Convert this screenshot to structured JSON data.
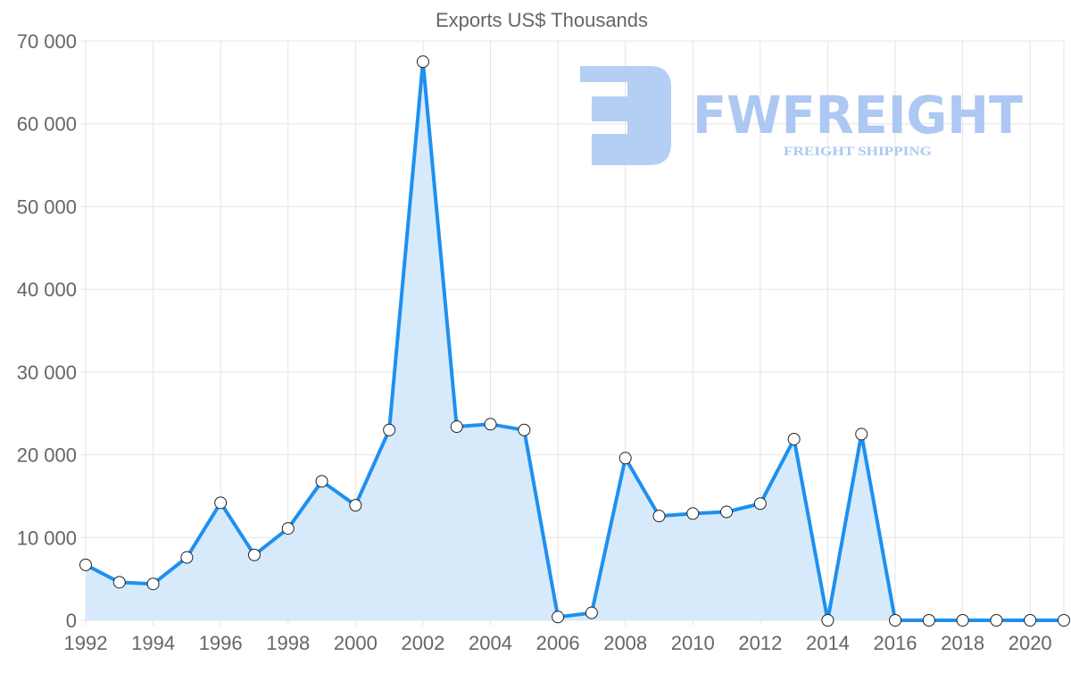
{
  "chart_data": {
    "type": "area",
    "title": "Exports US$ Thousands",
    "xlabel": "",
    "ylabel": "",
    "ylim": [
      0,
      70000
    ],
    "yticks": [
      0,
      10000,
      20000,
      30000,
      40000,
      50000,
      60000,
      70000
    ],
    "ytick_labels": [
      "0",
      "10 000",
      "20 000",
      "30 000",
      "40 000",
      "50 000",
      "60 000",
      "70 000"
    ],
    "xtick_labels": [
      "1992",
      "1994",
      "1996",
      "1998",
      "2000",
      "2002",
      "2004",
      "2006",
      "2008",
      "2010",
      "2012",
      "2014",
      "2016",
      "2018",
      "2020"
    ],
    "grid": true,
    "x": [
      1992,
      1993,
      1994,
      1995,
      1996,
      1997,
      1998,
      1999,
      2000,
      2001,
      2002,
      2003,
      2004,
      2005,
      2006,
      2007,
      2008,
      2009,
      2010,
      2011,
      2012,
      2013,
      2014,
      2015,
      2016,
      2017,
      2018,
      2019,
      2020,
      2021
    ],
    "series": [
      {
        "name": "Exports",
        "color": "#1e90f0",
        "fill": "#d7eafb",
        "values": [
          6700,
          4600,
          4400,
          7600,
          14200,
          7900,
          11100,
          16800,
          13900,
          23000,
          67500,
          23400,
          23700,
          23000,
          400,
          900,
          19600,
          12600,
          12900,
          13100,
          14100,
          21900,
          0,
          22500,
          0,
          0,
          0,
          0,
          0,
          0
        ]
      }
    ]
  },
  "watermark": {
    "brand": "FWFREIGHT",
    "tagline": "FREIGHT SHIPPING"
  }
}
